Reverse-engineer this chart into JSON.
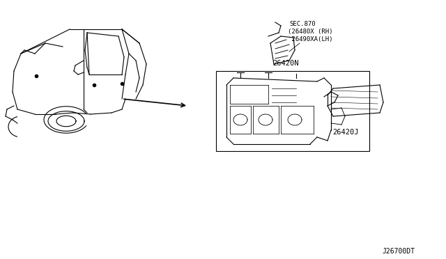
{
  "bg_color": "#ffffff",
  "line_color": "#000000",
  "light_gray": "#888888",
  "title_text": "",
  "diagram_id": "J26700DT",
  "label_26420N": "26420N",
  "label_26420J": "26420J",
  "label_sec": "SEC.870",
  "label_rh": "(26480X (RH)",
  "label_lh": " 26490XA(LH)",
  "figsize": [
    6.4,
    3.72
  ],
  "dpi": 100
}
